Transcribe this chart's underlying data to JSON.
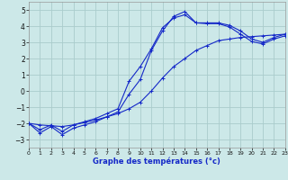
{
  "title": "",
  "xlabel": "Graphe des températures (°c)",
  "background_color": "#cce8e8",
  "grid_color": "#aacccc",
  "line_color": "#1428c8",
  "xlim": [
    0,
    23
  ],
  "ylim": [
    -3.5,
    5.5
  ],
  "xticks": [
    0,
    1,
    2,
    3,
    4,
    5,
    6,
    7,
    8,
    9,
    10,
    11,
    12,
    13,
    14,
    15,
    16,
    17,
    18,
    19,
    20,
    21,
    22,
    23
  ],
  "yticks": [
    -3,
    -2,
    -1,
    0,
    1,
    2,
    3,
    4,
    5
  ],
  "line1_x": [
    0,
    1,
    2,
    3,
    4,
    5,
    6,
    7,
    8,
    9,
    10,
    11,
    12,
    13,
    14,
    15,
    16,
    17,
    18,
    19,
    20,
    21,
    22,
    23
  ],
  "line1_y": [
    -2.0,
    -2.6,
    -2.2,
    -2.7,
    -2.3,
    -2.1,
    -1.9,
    -1.6,
    -1.3,
    -0.2,
    0.7,
    2.5,
    3.7,
    4.6,
    4.9,
    4.2,
    4.2,
    4.2,
    4.05,
    3.7,
    3.2,
    3.0,
    3.3,
    3.5
  ],
  "line2_x": [
    0,
    1,
    2,
    3,
    4,
    5,
    6,
    7,
    8,
    9,
    10,
    11,
    12,
    13,
    14,
    15,
    16,
    17,
    18,
    19,
    20,
    21,
    22,
    23
  ],
  "line2_y": [
    -2.0,
    -2.4,
    -2.1,
    -2.5,
    -2.1,
    -1.9,
    -1.7,
    -1.4,
    -1.1,
    0.6,
    1.5,
    2.6,
    3.9,
    4.5,
    4.7,
    4.2,
    4.15,
    4.15,
    3.95,
    3.5,
    3.05,
    2.9,
    3.2,
    3.4
  ],
  "line3_x": [
    0,
    1,
    2,
    3,
    4,
    5,
    6,
    7,
    8,
    9,
    10,
    11,
    12,
    13,
    14,
    15,
    16,
    17,
    18,
    19,
    20,
    21,
    22,
    23
  ],
  "line3_y": [
    -2.0,
    -2.1,
    -2.15,
    -2.2,
    -2.1,
    -1.95,
    -1.8,
    -1.6,
    -1.4,
    -1.1,
    -0.7,
    0.0,
    0.8,
    1.5,
    2.0,
    2.5,
    2.8,
    3.1,
    3.2,
    3.3,
    3.35,
    3.4,
    3.45,
    3.5
  ]
}
